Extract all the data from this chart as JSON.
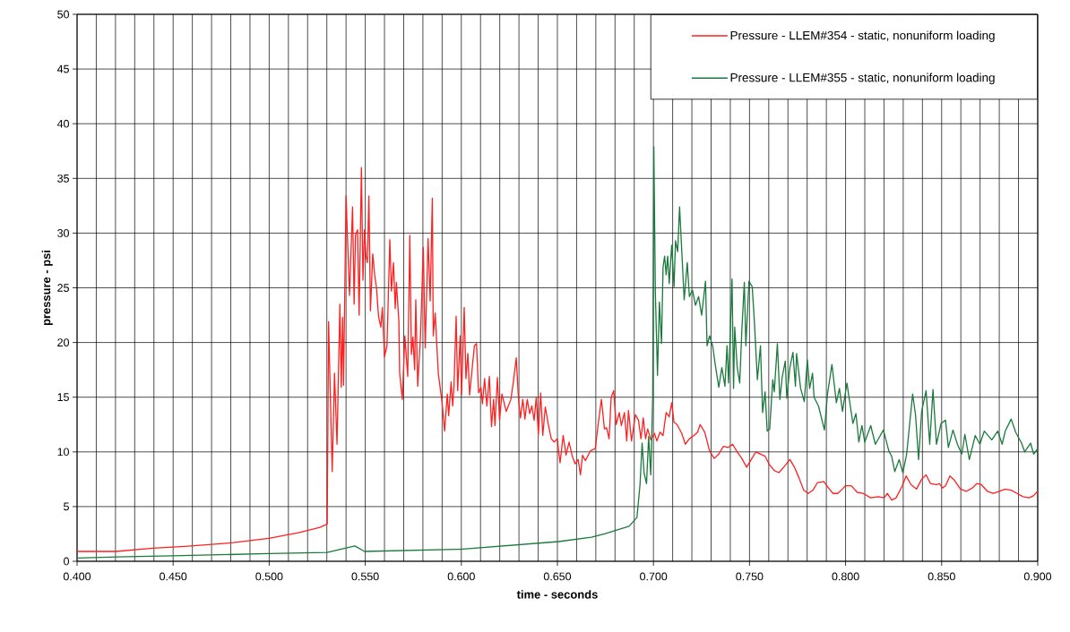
{
  "chart_data": {
    "type": "line",
    "xlabel": "time - seconds",
    "ylabel": "pressure - psi",
    "xlim": [
      0.4,
      0.9
    ],
    "ylim": [
      0,
      50
    ],
    "xticks": [
      {
        "value": 0.4,
        "label": "0.400"
      },
      {
        "value": 0.45,
        "label": "0.450"
      },
      {
        "value": 0.5,
        "label": "0.500"
      },
      {
        "value": 0.55,
        "label": "0.550"
      },
      {
        "value": 0.6,
        "label": "0.600"
      },
      {
        "value": 0.65,
        "label": "0.650"
      },
      {
        "value": 0.7,
        "label": "0.700"
      },
      {
        "value": 0.75,
        "label": "0.750"
      },
      {
        "value": 0.8,
        "label": "0.800"
      },
      {
        "value": 0.85,
        "label": "0.850"
      },
      {
        "value": 0.9,
        "label": "0.900"
      }
    ],
    "yticks": [
      0,
      5,
      10,
      15,
      20,
      25,
      30,
      35,
      40,
      45,
      50
    ],
    "grid": true,
    "legend": "top right",
    "series": [
      {
        "name": "Pressure - LLEM#354 - static, nonuniform loading",
        "color": "#ff2020",
        "x": [
          0.4003,
          0.4205,
          0.4392,
          0.45,
          0.4594,
          0.4813,
          0.4998,
          0.5152,
          0.5264,
          0.5302,
          0.5309,
          0.5328,
          0.534,
          0.5353,
          0.5368,
          0.5375,
          0.5382,
          0.5387,
          0.54,
          0.5418,
          0.5434,
          0.5442,
          0.5449,
          0.546,
          0.5468,
          0.548,
          0.5488,
          0.5496,
          0.5504,
          0.5511,
          0.5519,
          0.5527,
          0.5539,
          0.555,
          0.5558,
          0.5569,
          0.5581,
          0.5589,
          0.56,
          0.5613,
          0.5628,
          0.5636,
          0.5647,
          0.5656,
          0.5662,
          0.5675,
          0.5679,
          0.5693,
          0.5706,
          0.5721,
          0.5732,
          0.574,
          0.5748,
          0.5757,
          0.5763,
          0.5773,
          0.5788,
          0.5802,
          0.5812,
          0.5827,
          0.5838,
          0.5849,
          0.5854,
          0.5864,
          0.588,
          0.59,
          0.5913,
          0.5927,
          0.5934,
          0.5947,
          0.5955,
          0.5962,
          0.5973,
          0.5981,
          0.5994,
          0.6001,
          0.6015,
          0.6024,
          0.6034,
          0.6043,
          0.6068,
          0.6079,
          0.609,
          0.6102,
          0.611,
          0.6121,
          0.6133,
          0.6146,
          0.6157,
          0.6168,
          0.6175,
          0.6188,
          0.6199,
          0.6211,
          0.6234,
          0.6258,
          0.627,
          0.6286,
          0.6297,
          0.6308,
          0.632,
          0.6331,
          0.6343,
          0.6356,
          0.6367,
          0.6379,
          0.639,
          0.6401,
          0.6413,
          0.6424,
          0.6437,
          0.6452,
          0.6468,
          0.6483,
          0.6499,
          0.6514,
          0.653,
          0.6545,
          0.6561,
          0.6576,
          0.6592,
          0.6608,
          0.662,
          0.6631,
          0.6646,
          0.6672,
          0.6697,
          0.6713,
          0.6729,
          0.6745,
          0.6756,
          0.6769,
          0.678,
          0.6793,
          0.6806,
          0.6822,
          0.6833,
          0.6849,
          0.6861,
          0.687,
          0.6886,
          0.6906,
          0.6922,
          0.6935,
          0.6947,
          0.6959,
          0.697,
          0.6986,
          0.7005,
          0.7018,
          0.7034,
          0.705,
          0.7066,
          0.7082,
          0.7095,
          0.7107,
          0.7123,
          0.7147,
          0.7166,
          0.7187,
          0.7211,
          0.723,
          0.7243,
          0.7267,
          0.7292,
          0.7316,
          0.734,
          0.7364,
          0.7388,
          0.7412,
          0.7436,
          0.746,
          0.7485,
          0.7509,
          0.7533,
          0.7557,
          0.7581,
          0.7605,
          0.7629,
          0.7653,
          0.7678,
          0.771,
          0.7734,
          0.7758,
          0.7782,
          0.7806,
          0.783,
          0.7854,
          0.7887,
          0.7911,
          0.7935,
          0.7959,
          0.7983,
          0.7999,
          0.803,
          0.8061,
          0.8092,
          0.8131,
          0.817,
          0.8201,
          0.8217,
          0.824,
          0.8263,
          0.8295,
          0.8315,
          0.8341,
          0.8369,
          0.8396,
          0.8419,
          0.8442,
          0.8473,
          0.8489,
          0.8504,
          0.852,
          0.8543,
          0.8567,
          0.8598,
          0.8629,
          0.866,
          0.8683,
          0.8707,
          0.8738,
          0.8769,
          0.88,
          0.8831,
          0.8862,
          0.8893,
          0.8924,
          0.8955,
          0.8979,
          0.9
        ],
        "values": [
          0.9,
          0.9,
          1.2,
          1.3,
          1.4,
          1.7,
          2.1,
          2.6,
          3.1,
          3.4,
          21.9,
          8.2,
          17.2,
          10.7,
          23.5,
          15.9,
          22.3,
          16.1,
          33.4,
          24.3,
          32.4,
          23.5,
          29.8,
          30.3,
          22.5,
          36.0,
          25.7,
          30.3,
          27.9,
          27.3,
          33.4,
          22.9,
          28.1,
          26.0,
          25.1,
          22.4,
          21.4,
          23.2,
          18.7,
          19.7,
          29.4,
          24.7,
          27.3,
          23.1,
          25.5,
          21.9,
          17.2,
          14.8,
          20.6,
          16.9,
          29.8,
          18.9,
          20.5,
          17.5,
          23.9,
          16.0,
          20.8,
          28.7,
          19.5,
          29.5,
          23.8,
          33.2,
          20.6,
          22.7,
          17.2,
          14.5,
          11.9,
          15.3,
          13.3,
          16.4,
          14.2,
          16.1,
          22.4,
          15.6,
          20.6,
          15.2,
          23.2,
          16.7,
          19.0,
          15.2,
          19.7,
          19.9,
          15.4,
          15.9,
          14.4,
          16.7,
          14.2,
          16.9,
          12.3,
          14.8,
          12.4,
          16.8,
          12.9,
          15.3,
          13.7,
          14.8,
          16.3,
          18.6,
          15.0,
          13.1,
          14.8,
          13.0,
          14.8,
          13.5,
          14.2,
          12.9,
          15.0,
          11.6,
          15.4,
          11.5,
          14.1,
          12.6,
          11.2,
          10.9,
          11.2,
          9.0,
          11.5,
          9.7,
          10.9,
          9.7,
          8.9,
          9.3,
          7.9,
          9.7,
          9.2,
          10.1,
          10.3,
          12.6,
          14.8,
          12.1,
          12.2,
          11.2,
          15.0,
          15.6,
          12.5,
          13.6,
          12.4,
          13.6,
          11.0,
          13.8,
          11.0,
          13.4,
          12.9,
          11.2,
          13.1,
          11.2,
          12.1,
          11.1,
          11.7,
          11.0,
          11.8,
          11.5,
          13.6,
          13.2,
          14.5,
          12.7,
          12.5,
          11.7,
          10.7,
          11.2,
          11.5,
          11.8,
          12.5,
          11.8,
          10.1,
          9.4,
          9.8,
          10.5,
          10.4,
          10.7,
          10.0,
          9.4,
          8.6,
          9.3,
          10.0,
          9.8,
          9.6,
          8.8,
          8.3,
          8.1,
          8.6,
          9.3,
          8.6,
          7.6,
          6.5,
          6.2,
          6.5,
          7.2,
          7.3,
          6.7,
          6.2,
          6.2,
          6.6,
          6.9,
          6.9,
          6.3,
          6.2,
          5.8,
          5.9,
          5.8,
          6.2,
          5.6,
          5.8,
          6.9,
          7.8,
          7.0,
          6.6,
          7.5,
          7.9,
          7.1,
          7.0,
          7.1,
          6.7,
          6.9,
          7.8,
          7.4,
          6.6,
          6.4,
          6.7,
          7.1,
          7.0,
          6.4,
          6.2,
          6.4,
          6.6,
          6.5,
          6.2,
          5.9,
          5.8,
          6.0,
          6.4
        ]
      },
      {
        "name": "Pressure - LLEM#355 - static, nonuniform loading",
        "color": "#1a7a3c",
        "x": [
          0.4003,
          0.4205,
          0.45,
          0.4998,
          0.5301,
          0.5446,
          0.5496,
          0.5994,
          0.6506,
          0.6677,
          0.6745,
          0.6873,
          0.6914,
          0.693,
          0.6941,
          0.6951,
          0.6964,
          0.6975,
          0.6986,
          0.6996,
          0.7002,
          0.701,
          0.7021,
          0.7031,
          0.7042,
          0.705,
          0.7058,
          0.7066,
          0.7074,
          0.7082,
          0.7095,
          0.7107,
          0.7115,
          0.7126,
          0.7136,
          0.7147,
          0.716,
          0.7176,
          0.7187,
          0.7203,
          0.7219,
          0.7235,
          0.7251,
          0.7271,
          0.7279,
          0.7292,
          0.7308,
          0.7324,
          0.734,
          0.7356,
          0.7372,
          0.7383,
          0.7391,
          0.7409,
          0.7417,
          0.7423,
          0.7436,
          0.7449,
          0.746,
          0.7473,
          0.7481,
          0.7497,
          0.7514,
          0.7525,
          0.7541,
          0.7557,
          0.7568,
          0.7581,
          0.7592,
          0.7605,
          0.7621,
          0.7629,
          0.7645,
          0.7658,
          0.767,
          0.7686,
          0.7694,
          0.771,
          0.7726,
          0.7739,
          0.7745,
          0.7766,
          0.7785,
          0.7801,
          0.7813,
          0.7828,
          0.7836,
          0.7859,
          0.789,
          0.7906,
          0.7929,
          0.7952,
          0.7968,
          0.7984,
          0.8007,
          0.8038,
          0.8054,
          0.8069,
          0.8085,
          0.81,
          0.8131,
          0.8155,
          0.8197,
          0.8225,
          0.824,
          0.8256,
          0.8279,
          0.8298,
          0.8318,
          0.8349,
          0.8364,
          0.838,
          0.8396,
          0.8419,
          0.8438,
          0.8455,
          0.8473,
          0.8497,
          0.852,
          0.8535,
          0.8559,
          0.8582,
          0.8605,
          0.8621,
          0.8644,
          0.8675,
          0.8699,
          0.8722,
          0.8761,
          0.8792,
          0.8815,
          0.8831,
          0.8862,
          0.8885,
          0.8916,
          0.8932,
          0.8963,
          0.8979,
          0.9
        ],
        "values": [
          0.3,
          0.4,
          0.5,
          0.7,
          0.8,
          1.4,
          0.9,
          1.1,
          1.8,
          2.2,
          2.5,
          3.2,
          4.0,
          7.0,
          10.8,
          8.1,
          7.1,
          11.4,
          7.9,
          14.9,
          37.9,
          24.5,
          17.0,
          23.7,
          19.9,
          26.9,
          27.9,
          26.2,
          27.9,
          25.4,
          28.9,
          25.1,
          29.3,
          28.3,
          32.4,
          28.5,
          23.9,
          27.3,
          24.2,
          24.8,
          23.4,
          24.2,
          22.5,
          25.6,
          19.7,
          20.6,
          19.7,
          17.7,
          15.9,
          17.7,
          16.0,
          19.7,
          16.3,
          25.8,
          15.8,
          21.4,
          17.7,
          16.3,
          21.1,
          25.5,
          19.7,
          25.6,
          25.1,
          22.0,
          16.6,
          19.7,
          13.6,
          15.5,
          11.9,
          12.1,
          16.6,
          15.5,
          19.9,
          14.8,
          16.8,
          18.3,
          14.9,
          17.7,
          19.1,
          16.0,
          19.0,
          15.8,
          14.6,
          18.4,
          15.8,
          17.2,
          15.0,
          14.2,
          12.0,
          15.3,
          18.0,
          14.5,
          15.8,
          13.7,
          16.3,
          12.6,
          13.5,
          10.9,
          12.4,
          10.9,
          12.4,
          10.7,
          12.0,
          10.1,
          9.6,
          8.2,
          9.3,
          8.1,
          9.8,
          15.3,
          13.4,
          9.3,
          13.7,
          15.6,
          10.7,
          15.7,
          10.7,
          12.6,
          12.9,
          10.4,
          12.0,
          10.7,
          9.8,
          11.6,
          9.3,
          11.5,
          10.7,
          11.9,
          11.1,
          11.9,
          10.7,
          11.9,
          13.0,
          11.8,
          10.8,
          10.0,
          10.8,
          9.8,
          10.3
        ]
      }
    ]
  }
}
